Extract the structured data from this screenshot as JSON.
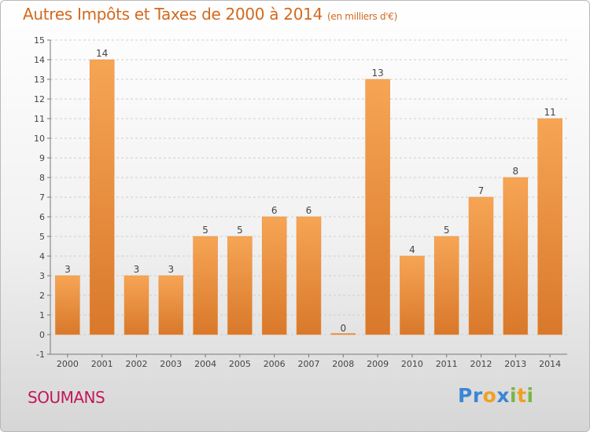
{
  "title": "Autres Impôts et Taxes de 2000 à 2014",
  "unit_note": "(en milliers d'€)",
  "commune": "SOUMANS",
  "logo": {
    "text": "Proxiti",
    "letters": [
      {
        "ch": "P",
        "color": "#3a86d6"
      },
      {
        "ch": "r",
        "color": "#3a86d6"
      },
      {
        "ch": "o",
        "color": "#f0a020"
      },
      {
        "ch": "x",
        "color": "#3a86d6"
      },
      {
        "ch": "i",
        "color": "#7ab648"
      },
      {
        "ch": "t",
        "color": "#f0a020"
      },
      {
        "ch": "i",
        "color": "#7ab648"
      }
    ]
  },
  "colors": {
    "bar_light": "#f6a555",
    "bar_dark": "#d9782a",
    "bar_stroke": "#e8913f",
    "grid": "#cfcfcf",
    "axis_text": "#444444",
    "title": "#d2691e",
    "commune": "#c2185b"
  },
  "chart_data": {
    "type": "bar",
    "categories": [
      "2000",
      "2001",
      "2002",
      "2003",
      "2004",
      "2005",
      "2006",
      "2007",
      "2008",
      "2009",
      "2010",
      "2011",
      "2012",
      "2013",
      "2014"
    ],
    "values": [
      3,
      14,
      3,
      3,
      5,
      5,
      6,
      6,
      0,
      13,
      4,
      5,
      7,
      8,
      11
    ],
    "data_labels": [
      "3",
      "14",
      "3",
      "3",
      "5",
      "5",
      "6",
      "6",
      "0",
      "13",
      "4",
      "5",
      "7",
      "8",
      "11"
    ],
    "title": "Autres Impôts et Taxes de 2000 à 2014",
    "subtitle": "(en milliers d'€)",
    "xlabel": "",
    "ylabel": "",
    "ylim": [
      -1,
      15
    ],
    "yticks": [
      -1,
      0,
      1,
      2,
      3,
      4,
      5,
      6,
      7,
      8,
      9,
      10,
      11,
      12,
      13,
      14,
      15
    ],
    "grid": true,
    "legend": "none"
  }
}
